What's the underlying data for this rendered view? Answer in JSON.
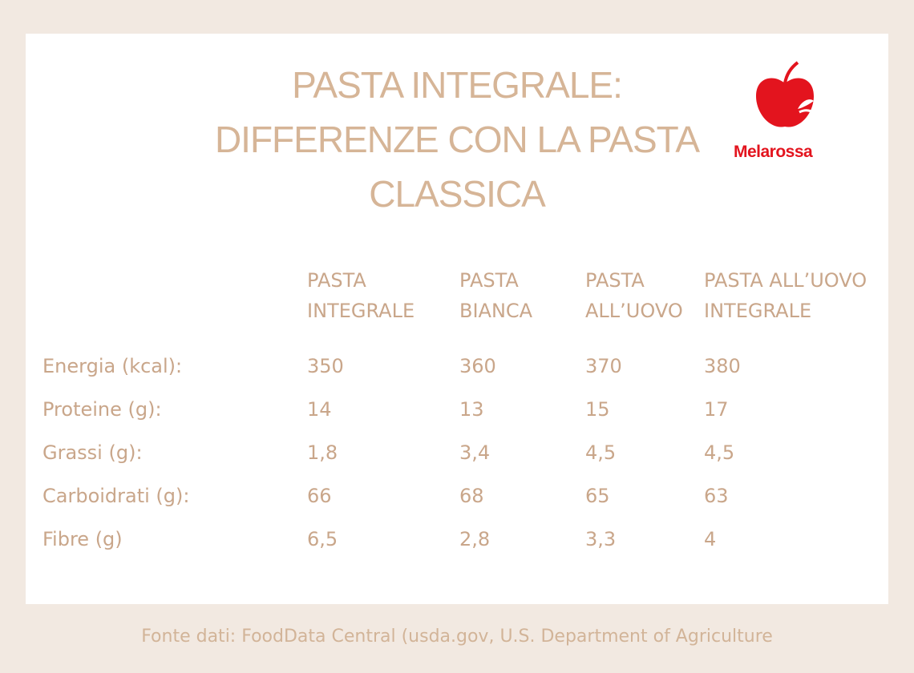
{
  "header": {
    "title": "PASTA INTEGRALE: DIFFERENZE CON LA PASTA CLASSICA",
    "logo": "Melarossa"
  },
  "table": {
    "columns": [
      "PASTA INTEGRALE",
      "PASTA BIANCA",
      "PASTA ALL’UOVO",
      "PASTA ALL’UOVO INTEGRALE"
    ],
    "rows": [
      [
        "Energia (kcal):",
        "350",
        "360",
        "370",
        "380"
      ],
      [
        "Proteine (g):",
        "14",
        "13",
        "15",
        "17"
      ],
      [
        "Grassi (g):",
        "1,8",
        "3,4",
        "4,5",
        "4,5"
      ],
      [
        "Carboidrati (g):",
        "66",
        "68",
        "65",
        "63"
      ],
      [
        "Fibre (g)",
        "6,5",
        "2,8",
        "3,3",
        "4"
      ]
    ]
  },
  "footer": {
    "source": "Fonte dati: FoodData Central (usda.gov, U.S. Department of Agriculture"
  }
}
